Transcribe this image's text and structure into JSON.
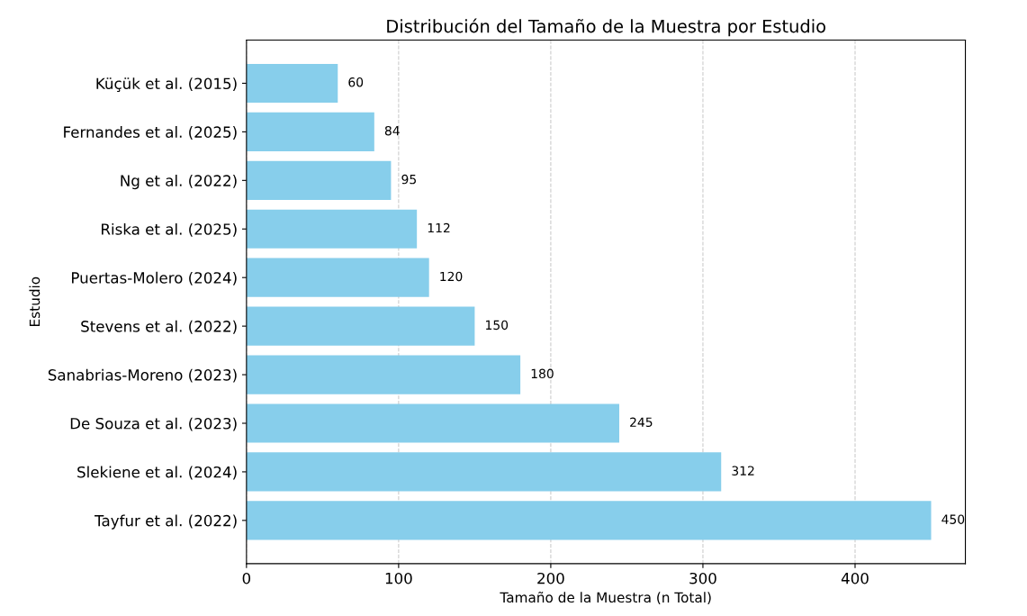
{
  "chart_data": {
    "type": "bar",
    "orientation": "horizontal",
    "title": "Distribución del Tamaño de la Muestra por Estudio",
    "xlabel": "Tamaño de la Muestra (n Total)",
    "ylabel": "Estudio",
    "categories": [
      "Küçük et al. (2015)",
      "Fernandes et al. (2025)",
      "Ng et al. (2022)",
      "Riska et al. (2025)",
      "Puertas-Molero (2024)",
      "Stevens et al. (2022)",
      "Sanabrias-Moreno (2023)",
      "De Souza et al. (2023)",
      "Slekiene et al. (2024)",
      "Tayfur et al. (2022)"
    ],
    "values": [
      60,
      84,
      95,
      112,
      120,
      150,
      180,
      245,
      312,
      450
    ],
    "color": "#87ceeb",
    "data_labels": true,
    "xlim": [
      0,
      472.5
    ],
    "xticks": [
      0,
      100,
      200,
      300,
      400
    ],
    "grid": "x"
  }
}
